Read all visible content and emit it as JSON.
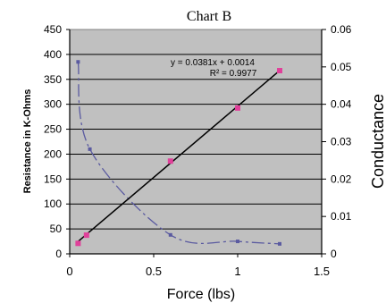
{
  "chart_data": {
    "type": "scatter",
    "title": "Chart B",
    "xlabel": "Force (lbs)",
    "ylabel": "Resistance in K-Ohms",
    "y2label": "Conductance",
    "xlim": [
      0,
      1.5
    ],
    "ylim": [
      0,
      450
    ],
    "y2lim": [
      0,
      0.06
    ],
    "x_ticks": [
      "0",
      "0.5",
      "1",
      "1.5"
    ],
    "y_ticks": [
      "0",
      "50",
      "100",
      "150",
      "200",
      "250",
      "300",
      "350",
      "400",
      "450"
    ],
    "y2_ticks": [
      "0",
      "0.01",
      "0.02",
      "0.03",
      "0.04",
      "0.05",
      "0.06"
    ],
    "grid": true,
    "series": [
      {
        "axis": "left",
        "style": "dashed-curve",
        "x": [
          0.05,
          0.12,
          0.6,
          1.0,
          1.25
        ],
        "y": [
          385,
          210,
          38,
          25,
          20
        ]
      },
      {
        "axis": "right",
        "style": "points",
        "x": [
          0.05,
          0.1,
          0.6,
          1.0,
          1.25
        ],
        "y": [
          0.0028,
          0.005,
          0.0248,
          0.039,
          0.049
        ]
      }
    ],
    "trendline": {
      "axis": "right",
      "slope": 0.0381,
      "intercept": 0.0014,
      "x_range": [
        0.05,
        1.25
      ]
    },
    "annotations": [
      "y = 0.0381x + 0.0014",
      "R² = 0.9977"
    ],
    "colors": {
      "plot_bg": "#c0c0c0",
      "resistance": "#5a5aa0",
      "conductance_points": "#e0409a",
      "trendline": "#000000",
      "grid": "#000000"
    }
  }
}
